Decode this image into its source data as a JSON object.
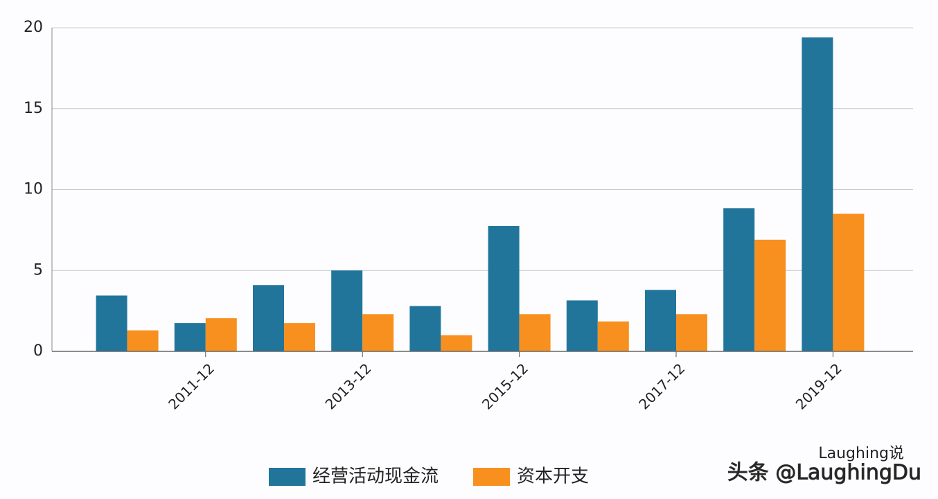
{
  "chart_data": {
    "type": "bar",
    "categories": [
      null,
      "2011-12",
      null,
      "2013-12",
      null,
      "2015-12",
      null,
      "2017-12",
      null,
      "2019-12"
    ],
    "series": [
      {
        "name": "经营活动现金流",
        "color": "#21759b",
        "values": [
          3.45,
          1.75,
          4.1,
          5.0,
          2.8,
          7.75,
          3.15,
          3.8,
          8.85,
          19.4
        ]
      },
      {
        "name": "资本开支",
        "color": "#f7901e",
        "values": [
          1.3,
          2.05,
          1.75,
          2.3,
          1.0,
          2.3,
          1.85,
          2.3,
          6.9,
          8.5
        ]
      }
    ],
    "ylim": [
      0,
      20
    ],
    "yticks": [
      0,
      5,
      10,
      15,
      20
    ],
    "grid": true,
    "legend": "bottom",
    "watermark": [
      "Laughing说",
      "头条 @LaughingDu"
    ]
  }
}
